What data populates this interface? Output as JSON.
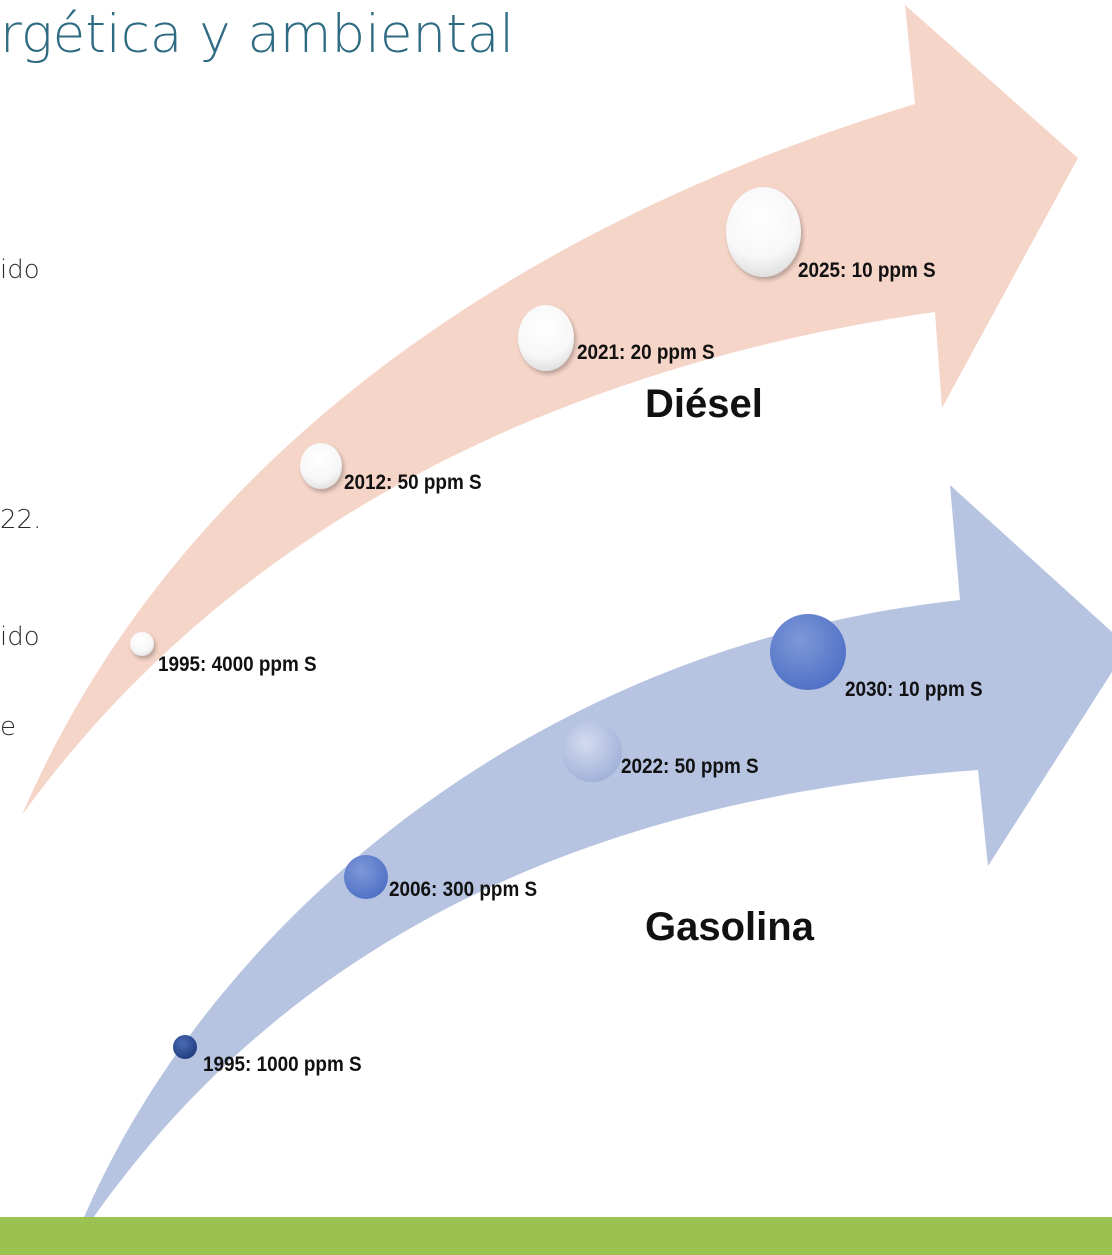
{
  "title": "rgética y ambiental",
  "fragments": [
    "ido",
    "22.",
    "ido",
    "e"
  ],
  "diesel": {
    "label": "Diésel",
    "arrow_color": "#f6d5c9",
    "milestones": [
      {
        "year": 1995,
        "sulfur_ppm": 4000,
        "label": "1995: 4000 ppm S"
      },
      {
        "year": 2012,
        "sulfur_ppm": 50,
        "label": "2012: 50 ppm S"
      },
      {
        "year": 2021,
        "sulfur_ppm": 20,
        "label": "2021: 20 ppm S"
      },
      {
        "year": 2025,
        "sulfur_ppm": 10,
        "label": "2025: 10 ppm S"
      }
    ]
  },
  "gasolina": {
    "label": "Gasolina",
    "arrow_color": "#b6c3e1",
    "milestones": [
      {
        "year": 1995,
        "sulfur_ppm": 1000,
        "label": "1995: 1000 ppm S"
      },
      {
        "year": 2006,
        "sulfur_ppm": 300,
        "label": "2006: 300 ppm S"
      },
      {
        "year": 2022,
        "sulfur_ppm": 50,
        "label": "2022: 50 ppm S"
      },
      {
        "year": 2030,
        "sulfur_ppm": 10,
        "label": "2030: 10 ppm S"
      }
    ]
  },
  "footer_color": "#9bc251"
}
